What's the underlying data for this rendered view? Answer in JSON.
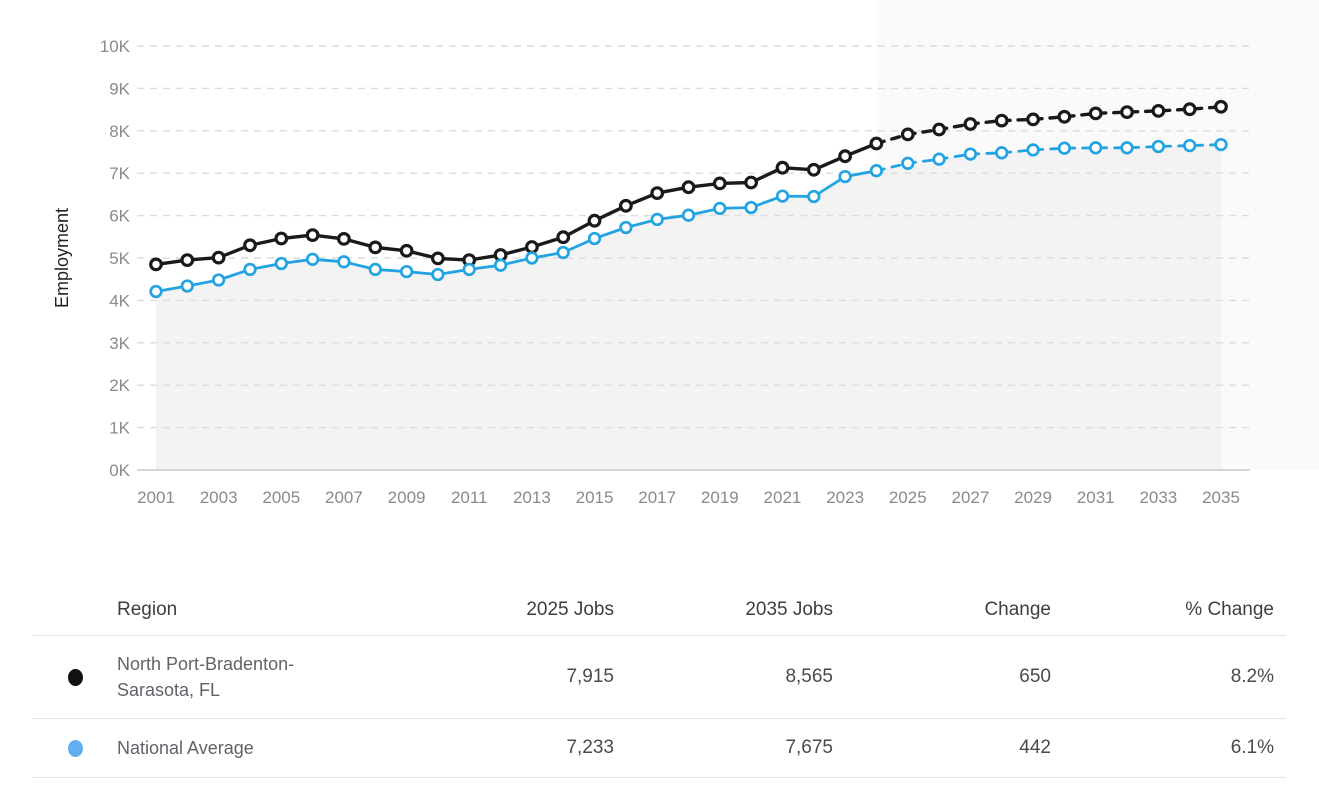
{
  "chart": {
    "ylabel": "Employment",
    "colors": {
      "region_line": "#1a1a1a",
      "national_line": "#24a3e3",
      "national_table_dot": "#62aeef",
      "region_table_dot": "#111111",
      "grid_line": "#dcdcdc",
      "axis_line": "#c9c9c9",
      "tick_text": "#8a8a8a",
      "area_fill": "#f3f3f3",
      "forecast_band": "#fafafa"
    }
  },
  "chart_data": {
    "type": "line",
    "title": "",
    "xlabel": "",
    "ylabel": "Employment",
    "ylim": [
      0,
      10000
    ],
    "y_tick_labels": [
      "0K",
      "1K",
      "2K",
      "3K",
      "4K",
      "5K",
      "6K",
      "7K",
      "8K",
      "9K",
      "10K"
    ],
    "x_tick_labels": [
      "2001",
      "2003",
      "2005",
      "2007",
      "2009",
      "2011",
      "2013",
      "2015",
      "2017",
      "2019",
      "2021",
      "2023",
      "2025",
      "2027",
      "2029",
      "2031",
      "2033",
      "2035"
    ],
    "x": [
      2001,
      2002,
      2003,
      2004,
      2005,
      2006,
      2007,
      2008,
      2009,
      2010,
      2011,
      2012,
      2013,
      2014,
      2015,
      2016,
      2017,
      2018,
      2019,
      2020,
      2021,
      2022,
      2023,
      2024,
      2025,
      2026,
      2027,
      2028,
      2029,
      2030,
      2031,
      2032,
      2033,
      2034,
      2035
    ],
    "solid_until_year": 2024,
    "grid": "horizontal-dashed",
    "legend_position": "table-below",
    "series": [
      {
        "name": "North Port-Bradenton-Sarasota, FL",
        "color": "#1a1a1a",
        "values": [
          4850,
          4950,
          5010,
          5300,
          5460,
          5540,
          5450,
          5250,
          5170,
          4990,
          4950,
          5070,
          5260,
          5490,
          5880,
          6230,
          6530,
          6670,
          6760,
          6780,
          7130,
          7080,
          7400,
          7700,
          7915,
          8030,
          8160,
          8240,
          8270,
          8330,
          8410,
          8440,
          8470,
          8510,
          8565
        ]
      },
      {
        "name": "National Average",
        "color": "#24a3e3",
        "values": [
          4210,
          4340,
          4480,
          4730,
          4870,
          4970,
          4910,
          4730,
          4680,
          4610,
          4730,
          4830,
          5000,
          5130,
          5460,
          5720,
          5910,
          6010,
          6170,
          6190,
          6460,
          6450,
          6920,
          7060,
          7233,
          7330,
          7450,
          7480,
          7550,
          7590,
          7600,
          7600,
          7630,
          7650,
          7675
        ]
      }
    ]
  },
  "table": {
    "headers": {
      "region": "Region",
      "jobs_2025": "2025 Jobs",
      "jobs_2035": "2035 Jobs",
      "change": "Change",
      "pct_change": "% Change"
    },
    "rows": [
      {
        "marker_color": "#111111",
        "region": "North Port-Bradenton-Sarasota, FL",
        "jobs_2025": "7,915",
        "jobs_2035": "8,565",
        "change": "650",
        "pct_change": "8.2%"
      },
      {
        "marker_color": "#62aeef",
        "region": "National Average",
        "jobs_2025": "7,233",
        "jobs_2035": "7,675",
        "change": "442",
        "pct_change": "6.1%"
      }
    ]
  }
}
